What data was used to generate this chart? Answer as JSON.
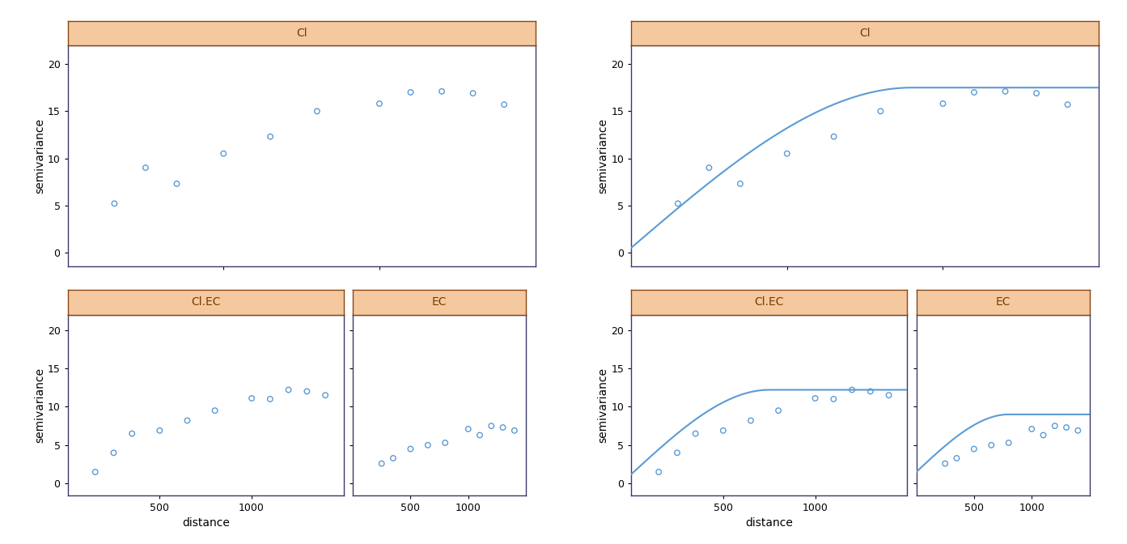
{
  "panel_bg": "#ffffff",
  "header_color": "#f5c9a0",
  "header_edge_color": "#8B4513",
  "dot_color": "#5b9bd5",
  "line_color": "#5b9bd5",
  "title_color": "#7a3a00",
  "border_color": "#3a3a6a",
  "Cl_x": [
    150,
    250,
    350,
    500,
    650,
    800,
    1000,
    1100,
    1200,
    1300,
    1400
  ],
  "Cl_y": [
    5.2,
    9.0,
    7.3,
    10.5,
    12.3,
    15.0,
    15.8,
    17.0,
    17.1,
    16.9,
    15.7
  ],
  "ClEC_x": [
    150,
    250,
    350,
    500,
    650,
    800,
    1000,
    1100,
    1200,
    1300,
    1400
  ],
  "ClEC_y": [
    1.5,
    4.0,
    6.5,
    6.9,
    8.2,
    9.5,
    11.1,
    11.0,
    12.2,
    12.0,
    11.5
  ],
  "EC_x": [
    250,
    350,
    500,
    650,
    800,
    1000,
    1100,
    1200,
    1300,
    1400
  ],
  "EC_y": [
    2.6,
    3.3,
    4.5,
    5.0,
    5.3,
    7.1,
    6.3,
    7.5,
    7.3,
    6.9
  ],
  "Cl_fit_nugget": 0.5,
  "Cl_fit_sill": 17.0,
  "Cl_fit_range": 900,
  "ClEC_fit_nugget": 1.2,
  "ClEC_fit_sill": 11.0,
  "ClEC_fit_range": 750,
  "EC_fit_nugget": 1.5,
  "EC_fit_sill": 7.5,
  "EC_fit_range": 800,
  "ylim": [
    -1.5,
    22
  ],
  "xlim": [
    0,
    1500
  ],
  "yticks": [
    0,
    5,
    10,
    15,
    20
  ],
  "xticks": [
    500,
    1000
  ],
  "xlabel": "distance",
  "ylabel": "semivariance",
  "header_fontsize": 10,
  "axis_fontsize": 9,
  "label_fontsize": 10
}
